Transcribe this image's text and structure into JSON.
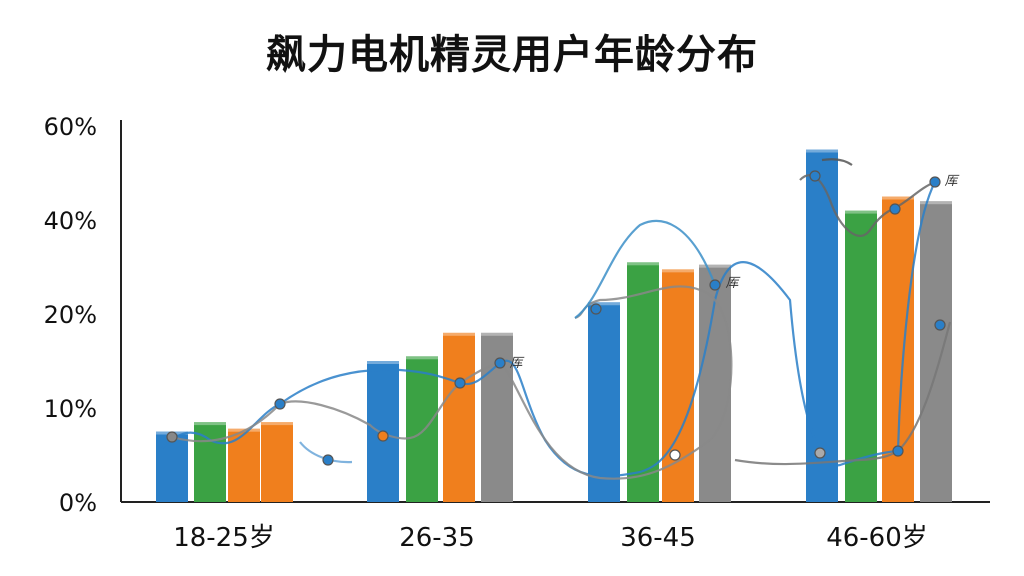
{
  "chart_data": {
    "type": "bar",
    "title": "飙力电机精灵用户年龄分布",
    "xlabel": "",
    "ylabel": "",
    "ylim": [
      0,
      60
    ],
    "y_ticks": [
      {
        "value": 0,
        "label": "0%"
      },
      {
        "value": 10,
        "label": "10%"
      },
      {
        "value": 20,
        "label": "20%"
      },
      {
        "value": 40,
        "label": "40%"
      },
      {
        "value": 60,
        "label": "60%"
      }
    ],
    "categories": [
      "18-25岁",
      "26-35",
      "36-45",
      "46-60岁"
    ],
    "series": [
      {
        "color": "#2a7fc8",
        "values": [
          7.5,
          15,
          22.5,
          55
        ]
      },
      {
        "color": "#3ba244",
        "values": [
          8.5,
          15.5,
          31,
          42
        ]
      },
      {
        "color": "#f07f1d",
        "values": [
          7.8,
          18,
          29.5,
          45
        ]
      },
      {
        "color": "#f07f1d",
        "values": [
          8.5,
          null,
          null,
          null
        ]
      },
      {
        "color": "#8a8a8a",
        "values": [
          null,
          18,
          30.5,
          44
        ]
      }
    ],
    "grid": false,
    "legend": "none",
    "marker_labels": [
      "厍",
      "厍",
      "厍"
    ]
  }
}
